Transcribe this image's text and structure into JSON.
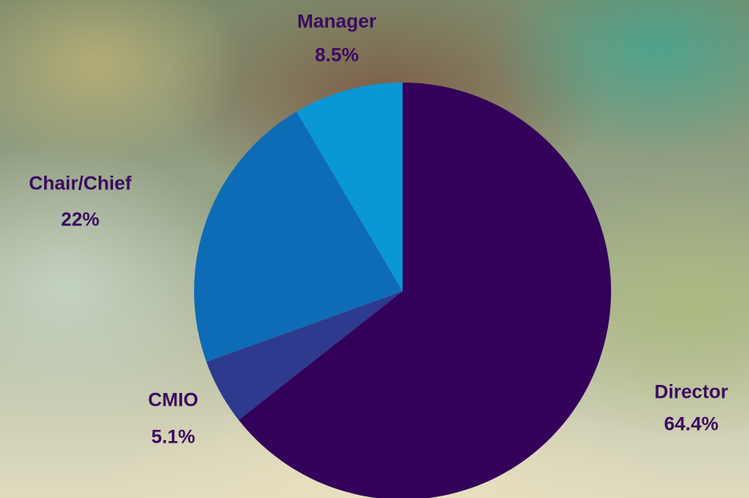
{
  "chart_data": {
    "type": "pie",
    "categories": [
      "Director",
      "CMIO",
      "Chair/Chief",
      "Manager"
    ],
    "values": [
      64.4,
      5.1,
      22,
      8.5
    ],
    "value_labels": [
      "64.4%",
      "5.1%",
      "22%",
      "8.5%"
    ],
    "colors": [
      "#33005a",
      "#2d3a8e",
      "#0e6cb6",
      "#0a97d6"
    ]
  }
}
